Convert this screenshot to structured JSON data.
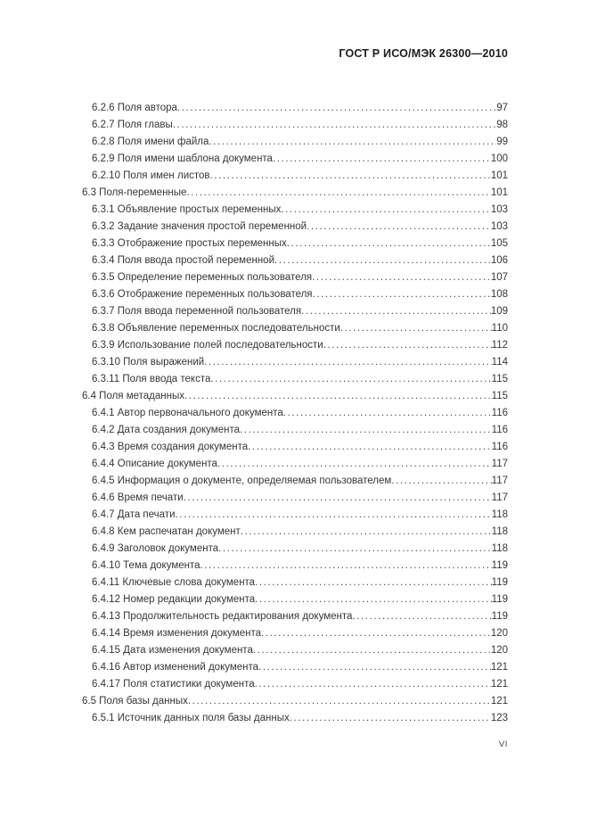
{
  "page": {
    "header": "ГОСТ Р ИСО/МЭК 26300—2010",
    "footer_page_number": "VI"
  },
  "toc": {
    "entries": [
      {
        "level": 3,
        "number": "6.2.6",
        "title": "Поля автора",
        "page": "97"
      },
      {
        "level": 3,
        "number": "6.2.7",
        "title": "Поля главы",
        "page": "98"
      },
      {
        "level": 3,
        "number": "6.2.8",
        "title": "Поля имени файла",
        "page": "99"
      },
      {
        "level": 3,
        "number": "6.2.9",
        "title": "Поля имени шаблона документа",
        "page": "100"
      },
      {
        "level": 3,
        "number": "6.2.10",
        "title": "Поля имен листов",
        "page": "101"
      },
      {
        "level": 2,
        "number": "6.3",
        "title": "Поля-переменные",
        "page": "101"
      },
      {
        "level": 3,
        "number": "6.3.1",
        "title": "Объявление простых переменных",
        "page": "103"
      },
      {
        "level": 3,
        "number": "6.3.2",
        "title": "Задание значения простой переменной",
        "page": "103"
      },
      {
        "level": 3,
        "number": "6.3.3",
        "title": "Отображение простых переменных",
        "page": "105"
      },
      {
        "level": 3,
        "number": "6.3.4",
        "title": "Поля ввода простой переменной",
        "page": "106"
      },
      {
        "level": 3,
        "number": "6.3.5",
        "title": "Определение переменных пользователя",
        "page": "107"
      },
      {
        "level": 3,
        "number": "6.3.6",
        "title": "Отображение переменных пользователя",
        "page": "108"
      },
      {
        "level": 3,
        "number": "6.3.7",
        "title": "Поля ввода переменной пользователя",
        "page": "109"
      },
      {
        "level": 3,
        "number": "6.3.8",
        "title": "Объявление переменных последовательности",
        "page": "110"
      },
      {
        "level": 3,
        "number": "6.3.9",
        "title": "Использование полей последовательности",
        "page": "112"
      },
      {
        "level": 3,
        "number": "6.3.10",
        "title": "Поля выражений",
        "page": "114"
      },
      {
        "level": 3,
        "number": "6.3.11",
        "title": "Поля ввода текста",
        "page": "115"
      },
      {
        "level": 2,
        "number": "6.4",
        "title": "Поля метаданных",
        "page": "115"
      },
      {
        "level": 3,
        "number": "6.4.1",
        "title": "Автор первоначального документа",
        "page": "116"
      },
      {
        "level": 3,
        "number": "6.4.2",
        "title": "Дата создания документа",
        "page": "116"
      },
      {
        "level": 3,
        "number": "6.4.3",
        "title": "Время создания документа",
        "page": "116"
      },
      {
        "level": 3,
        "number": "6.4.4",
        "title": "Описание документа",
        "page": "117"
      },
      {
        "level": 3,
        "number": "6.4.5",
        "title": "Информация о документе, определяемая пользователем",
        "page": "117"
      },
      {
        "level": 3,
        "number": "6.4.6",
        "title": "Время печати",
        "page": "117"
      },
      {
        "level": 3,
        "number": "6.4.7",
        "title": "Дата печати",
        "page": "118"
      },
      {
        "level": 3,
        "number": "6.4.8",
        "title": "Кем распечатан документ",
        "page": "118"
      },
      {
        "level": 3,
        "number": "6.4.9",
        "title": "Заголовок документа",
        "page": "118"
      },
      {
        "level": 3,
        "number": "6.4.10",
        "title": "Тема документа",
        "page": "119"
      },
      {
        "level": 3,
        "number": "6.4.11",
        "title": "Ключевые слова документа",
        "page": "119"
      },
      {
        "level": 3,
        "number": "6.4.12",
        "title": "Номер редакции документа",
        "page": "119"
      },
      {
        "level": 3,
        "number": "6.4.13",
        "title": "Продолжительность редактирования документа",
        "page": "119"
      },
      {
        "level": 3,
        "number": "6.4.14",
        "title": "Время изменения документа",
        "page": "120"
      },
      {
        "level": 3,
        "number": "6.4.15",
        "title": "Дата изменения документа",
        "page": "120"
      },
      {
        "level": 3,
        "number": "6.4.16",
        "title": "Автор изменений документа",
        "page": "121"
      },
      {
        "level": 3,
        "number": "6.4.17",
        "title": "Поля статистики документа",
        "page": "121"
      },
      {
        "level": 2,
        "number": "6.5",
        "title": "Поля базы данных",
        "page": "121"
      },
      {
        "level": 3,
        "number": "6.5.1",
        "title": "Источник данных поля базы данных",
        "page": "123"
      }
    ]
  }
}
